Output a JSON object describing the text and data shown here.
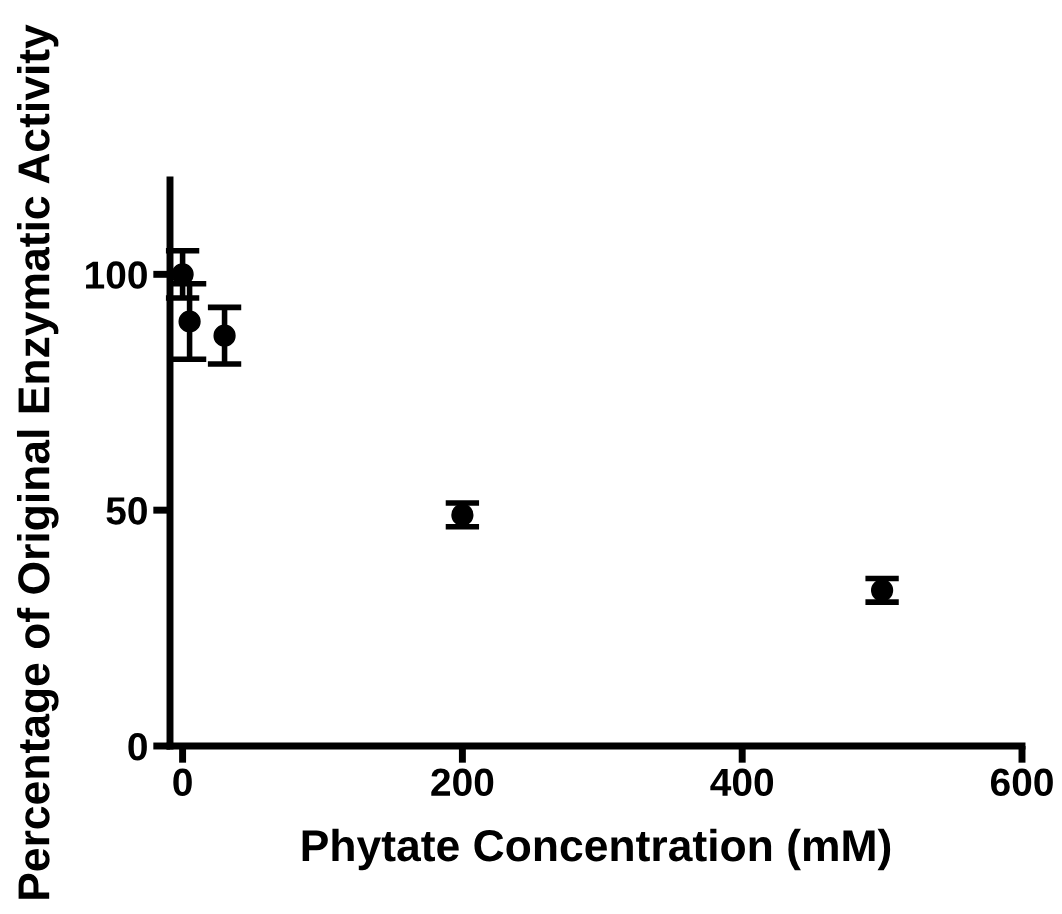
{
  "chart_data": {
    "type": "scatter",
    "xlabel": "Phytate Concentration (mM)",
    "ylabel": "Percentage of Original Enzymatic Activity",
    "x": [
      0,
      5,
      30,
      200,
      500
    ],
    "values": [
      100,
      90,
      87,
      49,
      33
    ],
    "errors": [
      5,
      8,
      6,
      2.5,
      2.5
    ],
    "color": "#000000",
    "marker": "circle",
    "grid": false,
    "legend": false,
    "xlim": [
      -9,
      600
    ],
    "xticks": [
      0,
      200,
      400,
      600
    ],
    "ylim": [
      0,
      120
    ],
    "yticks": [
      0,
      50,
      100
    ]
  }
}
